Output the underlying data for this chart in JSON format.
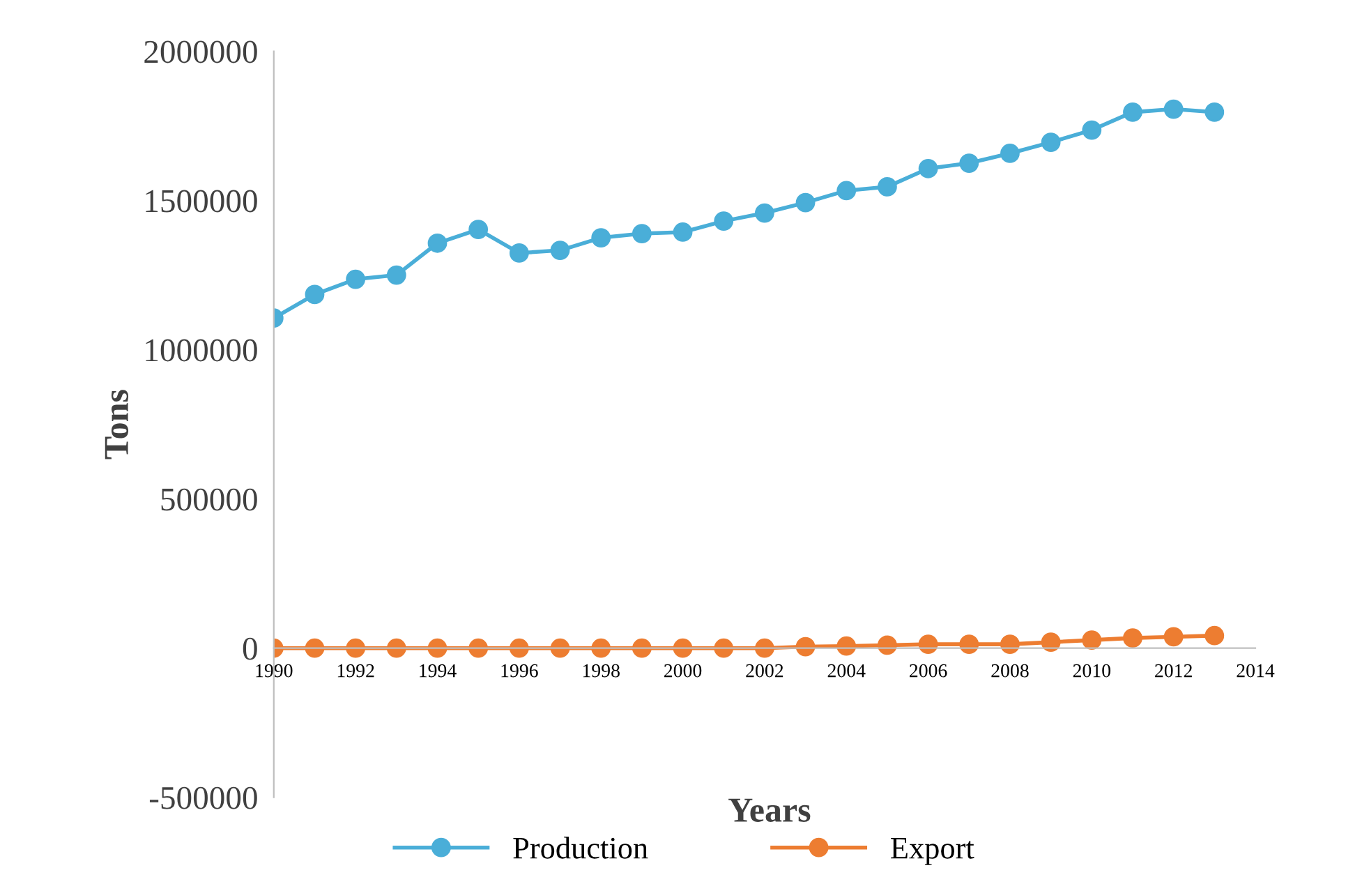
{
  "chart_data": {
    "type": "line",
    "xlabel": "Years",
    "ylabel": "Tons",
    "x": [
      1990,
      1991,
      1992,
      1993,
      1994,
      1995,
      1996,
      1997,
      1998,
      1999,
      2000,
      2001,
      2002,
      2003,
      2004,
      2005,
      2006,
      2007,
      2008,
      2009,
      2010,
      2011,
      2012,
      2013
    ],
    "series": [
      {
        "name": "Production",
        "color": "#4aaed8",
        "values": [
          1106000,
          1185000,
          1236000,
          1250000,
          1357000,
          1403000,
          1324000,
          1333000,
          1375000,
          1389000,
          1394000,
          1431000,
          1458000,
          1493000,
          1533000,
          1546000,
          1607000,
          1625000,
          1658000,
          1695000,
          1736000,
          1796000,
          1806000,
          1796000
        ]
      },
      {
        "name": "Export",
        "color": "#ed7d31",
        "values": [
          0,
          0,
          0,
          0,
          0,
          0,
          0,
          0,
          0,
          0,
          0,
          0,
          0,
          5000,
          7000,
          10000,
          13000,
          13000,
          13000,
          20000,
          27000,
          34000,
          38000,
          42000
        ]
      }
    ],
    "xlim": [
      1990,
      2014
    ],
    "xticks": [
      1990,
      1992,
      1994,
      1996,
      1998,
      2000,
      2002,
      2004,
      2006,
      2008,
      2010,
      2012,
      2014
    ],
    "ylim": [
      -500000,
      2000000
    ],
    "yticks": [
      -500000,
      0,
      500000,
      1000000,
      1500000,
      2000000
    ],
    "grid": false,
    "legend": "bottom",
    "marker": "circle",
    "line_style": "solid"
  }
}
